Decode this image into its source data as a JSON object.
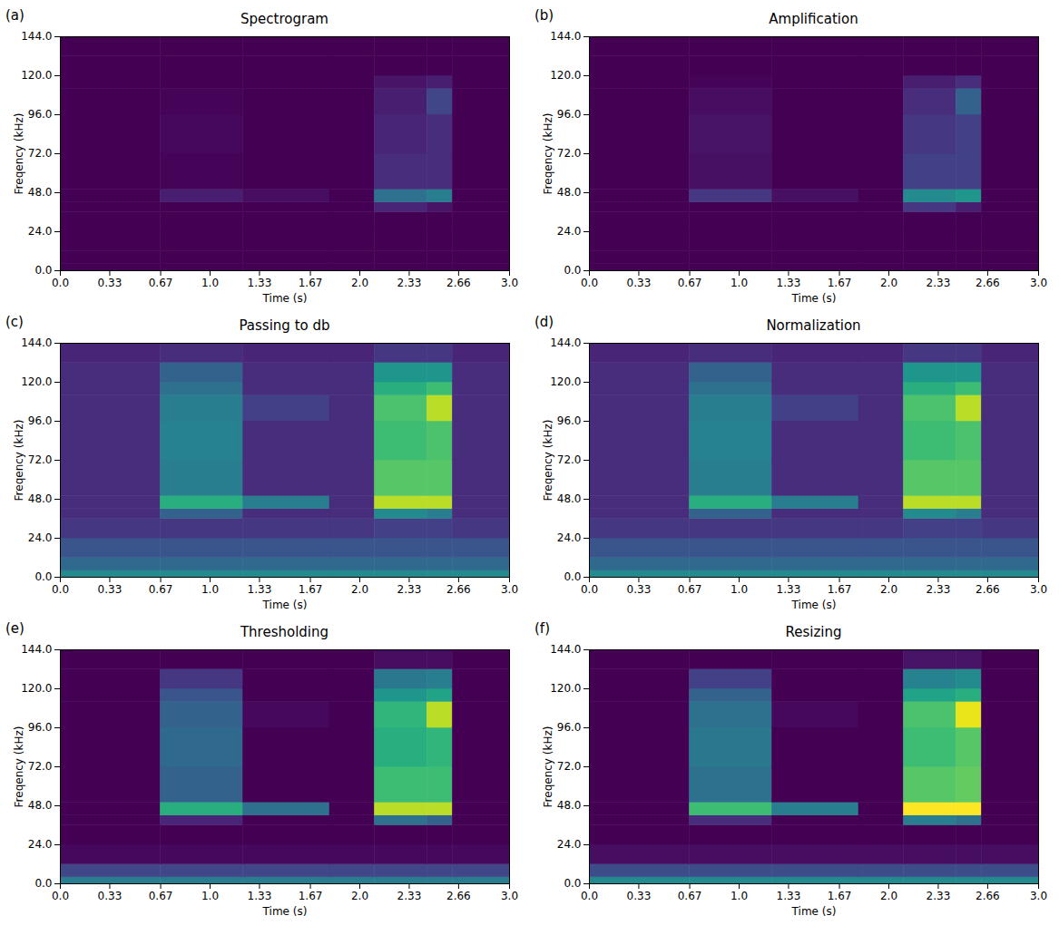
{
  "chart_data": [
    {
      "type": "heatmap",
      "panel": "(a)",
      "title": "Spectrogram",
      "x_label": "Time (s)",
      "y_label": "Freqency (kHz)",
      "xlim": [
        0,
        3
      ],
      "ylim": [
        0,
        144
      ],
      "xticks": [
        {
          "value": 0,
          "label": "0.0"
        },
        0.33,
        0.67,
        {
          "value": 1,
          "label": "1.0"
        },
        1.33,
        1.67,
        {
          "value": 2,
          "label": "2.0"
        },
        2.33,
        2.66,
        {
          "value": 3,
          "label": "3.0"
        }
      ],
      "yticks": [
        {
          "value": 0,
          "label": "0.0"
        },
        {
          "value": 24,
          "label": "24.0"
        },
        {
          "value": 48,
          "label": "48.0"
        },
        {
          "value": 72,
          "label": "72.0"
        },
        {
          "value": 96,
          "label": "96.0"
        },
        {
          "value": 120,
          "label": "120.0"
        },
        {
          "value": 144,
          "label": "144.0"
        }
      ],
      "x_edges": [
        0,
        0.67,
        1.22,
        1.8,
        2.1,
        2.45,
        2.62,
        3.0
      ],
      "y_edges": [
        0,
        4,
        12,
        24,
        36,
        42,
        50,
        72,
        96,
        112,
        120,
        132,
        144
      ],
      "cells": [
        [
          0,
          0,
          0,
          0,
          0,
          0,
          0
        ],
        [
          0,
          0,
          0,
          0,
          0,
          0,
          0
        ],
        [
          0,
          0,
          0,
          0,
          0,
          0,
          0
        ],
        [
          0,
          0,
          0,
          0,
          0,
          0,
          0
        ],
        [
          0,
          0,
          0,
          0,
          0.1,
          0.05,
          0
        ],
        [
          0,
          0.08,
          0.03,
          0,
          0.35,
          0.4,
          0
        ],
        [
          0,
          0.01,
          0,
          0,
          0.12,
          0.12,
          0
        ],
        [
          0,
          0.02,
          0,
          0,
          0.1,
          0.12,
          0
        ],
        [
          0,
          0.01,
          0,
          0,
          0.08,
          0.2,
          0
        ],
        [
          0,
          0,
          0,
          0,
          0.05,
          0.08,
          0
        ],
        [
          0,
          0,
          0,
          0,
          0,
          0,
          0
        ],
        [
          0,
          0,
          0,
          0,
          0,
          0,
          0
        ]
      ]
    },
    {
      "type": "heatmap",
      "panel": "(b)",
      "title": "Amplification",
      "x_label": "Time (s)",
      "y_label": "Freqency (kHz)",
      "xlim": [
        0,
        3
      ],
      "ylim": [
        0,
        144
      ],
      "xticks": [
        {
          "value": 0,
          "label": "0.0"
        },
        0.33,
        0.67,
        {
          "value": 1,
          "label": "1.0"
        },
        1.33,
        1.67,
        {
          "value": 2,
          "label": "2.0"
        },
        2.33,
        2.66,
        {
          "value": 3,
          "label": "3.0"
        }
      ],
      "yticks": [
        {
          "value": 0,
          "label": "0.0"
        },
        {
          "value": 24,
          "label": "24.0"
        },
        {
          "value": 48,
          "label": "48.0"
        },
        {
          "value": 72,
          "label": "72.0"
        },
        {
          "value": 96,
          "label": "96.0"
        },
        {
          "value": 120,
          "label": "120.0"
        },
        {
          "value": 144,
          "label": "144.0"
        }
      ],
      "x_edges": [
        0,
        0.67,
        1.22,
        1.8,
        2.1,
        2.45,
        2.62,
        3.0
      ],
      "y_edges": [
        0,
        4,
        12,
        24,
        36,
        42,
        50,
        72,
        96,
        112,
        120,
        132,
        144
      ],
      "cells": [
        [
          0,
          0,
          0,
          0,
          0,
          0,
          0
        ],
        [
          0,
          0,
          0,
          0,
          0,
          0,
          0
        ],
        [
          0,
          0,
          0,
          0,
          0,
          0,
          0
        ],
        [
          0,
          0,
          0,
          0,
          0,
          0,
          0
        ],
        [
          0,
          0,
          0,
          0,
          0.15,
          0.08,
          0
        ],
        [
          0,
          0.15,
          0.04,
          0,
          0.45,
          0.5,
          0
        ],
        [
          0,
          0.04,
          0,
          0,
          0.18,
          0.18,
          0
        ],
        [
          0,
          0.05,
          0,
          0,
          0.15,
          0.18,
          0
        ],
        [
          0,
          0.03,
          0,
          0,
          0.12,
          0.3,
          0
        ],
        [
          0,
          0.01,
          0,
          0,
          0.08,
          0.12,
          0
        ],
        [
          0,
          0,
          0,
          0,
          0,
          0,
          0
        ],
        [
          0,
          0,
          0,
          0,
          0,
          0,
          0
        ]
      ]
    },
    {
      "type": "heatmap",
      "panel": "(c)",
      "title": "Passing to db",
      "x_label": "Time (s)",
      "y_label": "Freqency (kHz)",
      "xlim": [
        0,
        3
      ],
      "ylim": [
        0,
        144
      ],
      "xticks": [
        {
          "value": 0,
          "label": "0.0"
        },
        0.33,
        0.67,
        {
          "value": 1,
          "label": "1.0"
        },
        1.33,
        1.67,
        {
          "value": 2,
          "label": "2.0"
        },
        2.33,
        2.66,
        {
          "value": 3,
          "label": "3.0"
        }
      ],
      "yticks": [
        {
          "value": 0,
          "label": "0.0"
        },
        {
          "value": 24,
          "label": "24.0"
        },
        {
          "value": 48,
          "label": "48.0"
        },
        {
          "value": 72,
          "label": "72.0"
        },
        {
          "value": 96,
          "label": "96.0"
        },
        {
          "value": 120,
          "label": "120.0"
        },
        {
          "value": 144,
          "label": "144.0"
        }
      ],
      "x_edges": [
        0,
        0.67,
        1.22,
        1.8,
        2.1,
        2.45,
        2.62,
        3.0
      ],
      "y_edges": [
        0,
        4,
        12,
        24,
        36,
        42,
        50,
        72,
        96,
        112,
        120,
        132,
        144
      ],
      "cells": [
        [
          0.45,
          0.45,
          0.45,
          0.45,
          0.45,
          0.45,
          0.45
        ],
        [
          0.32,
          0.32,
          0.32,
          0.32,
          0.32,
          0.32,
          0.32
        ],
        [
          0.25,
          0.25,
          0.25,
          0.25,
          0.25,
          0.25,
          0.25
        ],
        [
          0.15,
          0.15,
          0.15,
          0.15,
          0.18,
          0.18,
          0.15
        ],
        [
          0.12,
          0.3,
          0.12,
          0.12,
          0.45,
          0.4,
          0.12
        ],
        [
          0.12,
          0.6,
          0.4,
          0.12,
          0.85,
          0.85,
          0.12
        ],
        [
          0.12,
          0.4,
          0.12,
          0.12,
          0.7,
          0.7,
          0.12
        ],
        [
          0.12,
          0.42,
          0.12,
          0.12,
          0.65,
          0.68,
          0.12
        ],
        [
          0.12,
          0.4,
          0.18,
          0.12,
          0.68,
          0.85,
          0.12
        ],
        [
          0.12,
          0.35,
          0.12,
          0.12,
          0.6,
          0.65,
          0.12
        ],
        [
          0.12,
          0.3,
          0.12,
          0.12,
          0.5,
          0.5,
          0.12
        ],
        [
          0.1,
          0.12,
          0.1,
          0.1,
          0.15,
          0.15,
          0.1
        ]
      ]
    },
    {
      "type": "heatmap",
      "panel": "(d)",
      "title": "Normalization",
      "x_label": "Time (s)",
      "y_label": "Freqency (kHz)",
      "xlim": [
        0,
        3
      ],
      "ylim": [
        0,
        144
      ],
      "xticks": [
        {
          "value": 0,
          "label": "0.0"
        },
        0.33,
        0.67,
        {
          "value": 1,
          "label": "1.0"
        },
        1.33,
        1.67,
        {
          "value": 2,
          "label": "2.0"
        },
        2.33,
        2.66,
        {
          "value": 3,
          "label": "3.0"
        }
      ],
      "yticks": [
        {
          "value": 0,
          "label": "0.0"
        },
        {
          "value": 24,
          "label": "24.0"
        },
        {
          "value": 48,
          "label": "48.0"
        },
        {
          "value": 72,
          "label": "72.0"
        },
        {
          "value": 96,
          "label": "96.0"
        },
        {
          "value": 120,
          "label": "120.0"
        },
        {
          "value": 144,
          "label": "144.0"
        }
      ],
      "x_edges": [
        0,
        0.67,
        1.22,
        1.8,
        2.1,
        2.45,
        2.62,
        3.0
      ],
      "y_edges": [
        0,
        4,
        12,
        24,
        36,
        42,
        50,
        72,
        96,
        112,
        120,
        132,
        144
      ],
      "cells": [
        [
          0.45,
          0.45,
          0.45,
          0.45,
          0.45,
          0.45,
          0.45
        ],
        [
          0.32,
          0.32,
          0.32,
          0.32,
          0.32,
          0.32,
          0.32
        ],
        [
          0.25,
          0.25,
          0.25,
          0.25,
          0.25,
          0.25,
          0.25
        ],
        [
          0.15,
          0.15,
          0.15,
          0.15,
          0.18,
          0.18,
          0.15
        ],
        [
          0.12,
          0.3,
          0.12,
          0.12,
          0.45,
          0.4,
          0.12
        ],
        [
          0.12,
          0.6,
          0.4,
          0.12,
          0.85,
          0.85,
          0.12
        ],
        [
          0.12,
          0.4,
          0.12,
          0.12,
          0.7,
          0.7,
          0.12
        ],
        [
          0.12,
          0.42,
          0.12,
          0.12,
          0.65,
          0.68,
          0.12
        ],
        [
          0.12,
          0.4,
          0.18,
          0.12,
          0.68,
          0.85,
          0.12
        ],
        [
          0.12,
          0.35,
          0.12,
          0.12,
          0.6,
          0.65,
          0.12
        ],
        [
          0.12,
          0.3,
          0.12,
          0.12,
          0.5,
          0.5,
          0.12
        ],
        [
          0.1,
          0.12,
          0.1,
          0.1,
          0.15,
          0.15,
          0.1
        ]
      ]
    },
    {
      "type": "heatmap",
      "panel": "(e)",
      "title": "Thresholding",
      "x_label": "Time (s)",
      "y_label": "Freqency (kHz)",
      "xlim": [
        0,
        3
      ],
      "ylim": [
        0,
        144
      ],
      "xticks": [
        {
          "value": 0,
          "label": "0.0"
        },
        0.33,
        0.67,
        {
          "value": 1,
          "label": "1.0"
        },
        1.33,
        1.67,
        {
          "value": 2,
          "label": "2.0"
        },
        2.33,
        2.66,
        {
          "value": 3,
          "label": "3.0"
        }
      ],
      "yticks": [
        {
          "value": 0,
          "label": "0.0"
        },
        {
          "value": 24,
          "label": "24.0"
        },
        {
          "value": 48,
          "label": "48.0"
        },
        {
          "value": 72,
          "label": "72.0"
        },
        {
          "value": 96,
          "label": "96.0"
        },
        {
          "value": 120,
          "label": "120.0"
        },
        {
          "value": 144,
          "label": "144.0"
        }
      ],
      "x_edges": [
        0,
        0.67,
        1.22,
        1.8,
        2.1,
        2.45,
        2.62,
        3.0
      ],
      "y_edges": [
        0,
        4,
        12,
        24,
        36,
        42,
        50,
        72,
        96,
        112,
        120,
        132,
        144
      ],
      "cells": [
        [
          0.4,
          0.4,
          0.4,
          0.4,
          0.4,
          0.4,
          0.4
        ],
        [
          0.2,
          0.2,
          0.2,
          0.2,
          0.2,
          0.2,
          0.2
        ],
        [
          0.02,
          0.02,
          0.02,
          0.02,
          0.02,
          0.02,
          0.02
        ],
        [
          0,
          0,
          0,
          0,
          0,
          0,
          0
        ],
        [
          0,
          0.1,
          0,
          0,
          0.35,
          0.3,
          0
        ],
        [
          0,
          0.6,
          0.35,
          0,
          0.85,
          0.85,
          0
        ],
        [
          0,
          0.3,
          0,
          0,
          0.65,
          0.65,
          0
        ],
        [
          0,
          0.32,
          0,
          0,
          0.6,
          0.62,
          0
        ],
        [
          0,
          0.3,
          0.02,
          0,
          0.62,
          0.85,
          0
        ],
        [
          0,
          0.25,
          0,
          0,
          0.5,
          0.55,
          0
        ],
        [
          0,
          0.15,
          0,
          0,
          0.38,
          0.4,
          0
        ],
        [
          0,
          0,
          0,
          0,
          0.03,
          0.03,
          0
        ]
      ]
    },
    {
      "type": "heatmap",
      "panel": "(f)",
      "title": "Resizing",
      "x_label": "Time (s)",
      "y_label": "Freqency (kHz)",
      "xlim": [
        0,
        3
      ],
      "ylim": [
        0,
        144
      ],
      "xticks": [
        {
          "value": 0,
          "label": "0.0"
        },
        0.33,
        0.67,
        {
          "value": 1,
          "label": "1.0"
        },
        1.33,
        1.67,
        {
          "value": 2,
          "label": "2.0"
        },
        2.33,
        2.66,
        {
          "value": 3,
          "label": "3.0"
        }
      ],
      "yticks": [
        {
          "value": 0,
          "label": "0.0"
        },
        {
          "value": 24,
          "label": "24.0"
        },
        {
          "value": 48,
          "label": "48.0"
        },
        {
          "value": 72,
          "label": "72.0"
        },
        {
          "value": 96,
          "label": "96.0"
        },
        {
          "value": 120,
          "label": "120.0"
        },
        {
          "value": 144,
          "label": "144.0"
        }
      ],
      "x_edges": [
        0,
        0.67,
        1.22,
        1.8,
        2.1,
        2.45,
        2.62,
        3.0
      ],
      "y_edges": [
        0,
        4,
        12,
        24,
        36,
        42,
        50,
        72,
        96,
        112,
        120,
        132,
        144
      ],
      "cells": [
        [
          0.45,
          0.45,
          0.45,
          0.45,
          0.45,
          0.45,
          0.45
        ],
        [
          0.22,
          0.22,
          0.22,
          0.22,
          0.22,
          0.22,
          0.22
        ],
        [
          0.03,
          0.03,
          0.03,
          0.03,
          0.03,
          0.03,
          0.03
        ],
        [
          0,
          0,
          0,
          0,
          0,
          0,
          0
        ],
        [
          0,
          0.12,
          0,
          0,
          0.4,
          0.35,
          0
        ],
        [
          0,
          0.65,
          0.4,
          0,
          0.95,
          0.95,
          0
        ],
        [
          0,
          0.35,
          0,
          0,
          0.7,
          0.72,
          0
        ],
        [
          0,
          0.38,
          0,
          0,
          0.65,
          0.7,
          0
        ],
        [
          0,
          0.35,
          0.02,
          0,
          0.68,
          0.92,
          0
        ],
        [
          0,
          0.3,
          0,
          0,
          0.55,
          0.6,
          0
        ],
        [
          0,
          0.18,
          0,
          0,
          0.42,
          0.45,
          0
        ],
        [
          0,
          0,
          0,
          0,
          0.05,
          0.05,
          0
        ]
      ]
    }
  ]
}
